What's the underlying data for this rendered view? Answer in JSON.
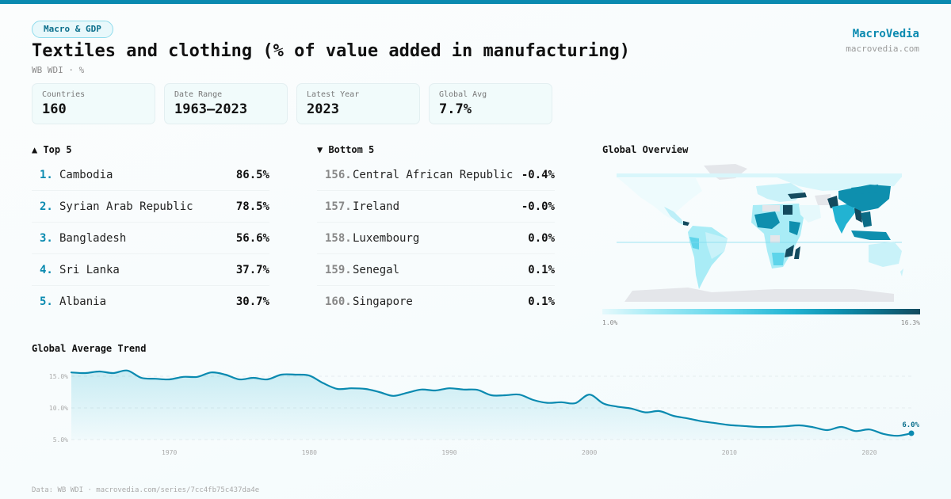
{
  "header": {
    "category_pill": "Macro & GDP",
    "title": "Textiles and clothing (% of value added in manufacturing)",
    "subtitle": "WB WDI · %",
    "brand": "MacroVedia",
    "brand_url": "macrovedia.com",
    "accent_color": "#0a8ab0"
  },
  "stats": [
    {
      "label": "Countries",
      "value": "160"
    },
    {
      "label": "Date Range",
      "value": "1963–2023"
    },
    {
      "label": "Latest Year",
      "value": "2023"
    },
    {
      "label": "Global Avg",
      "value": "7.7%"
    }
  ],
  "top5": {
    "title": "▲ Top 5",
    "items": [
      {
        "rank": "1.",
        "name": "Cambodia",
        "value": "86.5%"
      },
      {
        "rank": "2.",
        "name": "Syrian Arab Republic",
        "value": "78.5%"
      },
      {
        "rank": "3.",
        "name": "Bangladesh",
        "value": "56.6%"
      },
      {
        "rank": "4.",
        "name": "Sri Lanka",
        "value": "37.7%"
      },
      {
        "rank": "5.",
        "name": "Albania",
        "value": "30.7%"
      }
    ]
  },
  "bottom5": {
    "title": "▼ Bottom 5",
    "items": [
      {
        "rank": "156.",
        "name": "Central African Republic",
        "value": "-0.4%"
      },
      {
        "rank": "157.",
        "name": "Ireland",
        "value": "-0.0%"
      },
      {
        "rank": "158.",
        "name": "Luxembourg",
        "value": "0.0%"
      },
      {
        "rank": "159.",
        "name": "Senegal",
        "value": "0.1%"
      },
      {
        "rank": "160.",
        "name": "Singapore",
        "value": "0.1%"
      }
    ]
  },
  "map": {
    "title": "Global Overview",
    "legend_min": "1.0%",
    "legend_max": "16.3%",
    "no_data_color": "#e4e6ea",
    "scale_colors": [
      "#e6f9fc",
      "#a9ecf6",
      "#5ed4ea",
      "#22b3d2",
      "#0e8fae",
      "#0c6c86",
      "#134a5e"
    ]
  },
  "trend": {
    "title": "Global Average Trend",
    "last_label": "6.0%"
  },
  "chart_data": {
    "type": "area",
    "title": "Global Average Trend",
    "xlabel": "",
    "ylabel": "",
    "x_ticks": [
      1970,
      1980,
      1990,
      2000,
      2010,
      2020
    ],
    "y_ticks": [
      5,
      10,
      15
    ],
    "y_tick_labels": [
      "5.0%",
      "10.0%",
      "15.0%"
    ],
    "ylim": [
      4.5,
      16.5
    ],
    "xlim": [
      1963,
      2023
    ],
    "grid": true,
    "series": [
      {
        "name": "Global average",
        "x": [
          1963,
          1964,
          1965,
          1966,
          1967,
          1968,
          1969,
          1970,
          1971,
          1972,
          1973,
          1974,
          1975,
          1976,
          1977,
          1978,
          1979,
          1980,
          1981,
          1982,
          1983,
          1984,
          1985,
          1986,
          1987,
          1988,
          1989,
          1990,
          1991,
          1992,
          1993,
          1994,
          1995,
          1996,
          1997,
          1998,
          1999,
          2000,
          2001,
          2002,
          2003,
          2004,
          2005,
          2006,
          2007,
          2008,
          2009,
          2010,
          2011,
          2012,
          2013,
          2014,
          2015,
          2016,
          2017,
          2018,
          2019,
          2020,
          2021,
          2022,
          2023
        ],
        "values": [
          15.6,
          15.5,
          15.75,
          15.5,
          15.9,
          14.75,
          14.6,
          14.5,
          14.9,
          14.9,
          15.6,
          15.25,
          14.5,
          14.75,
          14.5,
          15.25,
          15.25,
          15.1,
          13.9,
          13.0,
          13.1,
          13.0,
          12.5,
          11.9,
          12.4,
          12.9,
          12.75,
          13.1,
          12.9,
          12.85,
          12.0,
          12.0,
          12.1,
          11.25,
          10.8,
          10.9,
          10.75,
          12.1,
          10.7,
          10.2,
          9.9,
          9.3,
          9.5,
          8.75,
          8.35,
          7.9,
          7.6,
          7.3,
          7.15,
          7.0,
          7.0,
          7.1,
          7.25,
          6.95,
          6.5,
          7.0,
          6.35,
          6.6,
          5.9,
          5.6,
          6.0
        ]
      }
    ],
    "annotations": [
      {
        "x": 2023,
        "y": 6.0,
        "text": "6.0%"
      }
    ]
  },
  "footer": {
    "source": "Data: WB WDI · macrovedia.com/series/7cc4fb75c437da4e"
  }
}
